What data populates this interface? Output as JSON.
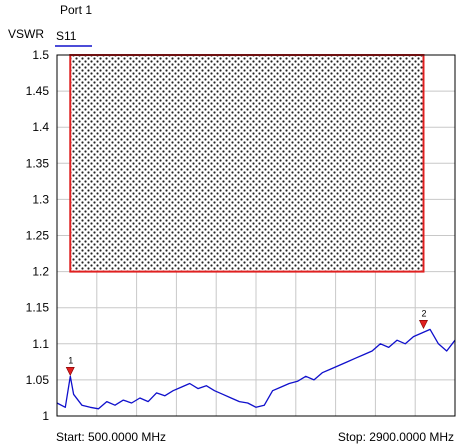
{
  "chart_data": {
    "type": "line",
    "port_label": "Port 1",
    "trace_label": "S11",
    "ylabel": "VSWR",
    "ylim": [
      1.0,
      1.5
    ],
    "yticks": [
      "1",
      "1.05",
      "1.1",
      "1.15",
      "1.2",
      "1.25",
      "1.3",
      "1.35",
      "1.4",
      "1.45",
      "1.5"
    ],
    "xlim": [
      500,
      2900
    ],
    "start_label": "Start: 500.0000 MHz",
    "stop_label": "Stop: 2900.0000 MHz",
    "limit_region": {
      "x_start": 580,
      "x_end": 2710,
      "y_min": 1.2,
      "y_max": 1.5,
      "color": "#e02020"
    },
    "trace_color": "#1010cc",
    "series": [
      {
        "name": "S11",
        "x": [
          500,
          550,
          580,
          600,
          650,
          700,
          750,
          800,
          850,
          900,
          950,
          1000,
          1050,
          1100,
          1150,
          1200,
          1250,
          1300,
          1350,
          1400,
          1450,
          1500,
          1550,
          1600,
          1650,
          1700,
          1750,
          1800,
          1850,
          1900,
          1950,
          2000,
          2050,
          2100,
          2150,
          2200,
          2250,
          2300,
          2350,
          2400,
          2450,
          2500,
          2550,
          2600,
          2650,
          2700,
          2750,
          2800,
          2850,
          2900
        ],
        "y": [
          1.018,
          1.012,
          1.055,
          1.03,
          1.015,
          1.012,
          1.01,
          1.02,
          1.015,
          1.022,
          1.018,
          1.025,
          1.02,
          1.032,
          1.028,
          1.035,
          1.04,
          1.045,
          1.038,
          1.042,
          1.035,
          1.03,
          1.025,
          1.02,
          1.018,
          1.012,
          1.015,
          1.035,
          1.04,
          1.045,
          1.048,
          1.055,
          1.05,
          1.06,
          1.065,
          1.07,
          1.075,
          1.08,
          1.085,
          1.09,
          1.1,
          1.095,
          1.105,
          1.1,
          1.11,
          1.115,
          1.12,
          1.1,
          1.09,
          1.105
        ]
      }
    ],
    "markers": [
      {
        "label": "1",
        "x": 580,
        "y": 1.055
      },
      {
        "label": "2",
        "x": 2710,
        "y": 1.12
      }
    ]
  }
}
